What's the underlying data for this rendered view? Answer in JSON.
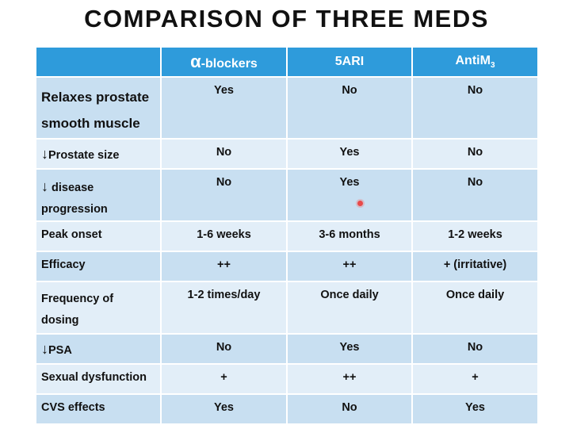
{
  "title": "COMPARISON OF THREE MEDS",
  "headers": {
    "alpha_symbol": "α",
    "alpha_suffix": "-blockers",
    "five_ari": "5ARI",
    "antim_base": "AntiM",
    "antim_sub": "3"
  },
  "rows": [
    {
      "label_line1": "Relaxes prostate",
      "label_line2": "smooth muscle",
      "alpha": "Yes",
      "five_ari": "No",
      "antim": "No"
    },
    {
      "arrow": "↓",
      "label": "Prostate size",
      "alpha": "No",
      "five_ari": "Yes",
      "antim": "No"
    },
    {
      "arrow": "↓",
      "label_line1": " disease",
      "label_line2": "progression",
      "alpha": "No",
      "five_ari": "Yes",
      "antim": "No"
    },
    {
      "label": "Peak onset",
      "alpha": "1-6 weeks",
      "five_ari": "3-6 months",
      "antim": "1-2 weeks"
    },
    {
      "label": "Efficacy",
      "alpha": "++",
      "five_ari": "++",
      "antim": "+ (irritative)"
    },
    {
      "label_line1": "Frequency of",
      "label_line2": "dosing",
      "alpha": "1-2 times/day",
      "five_ari": "Once daily",
      "antim": "Once daily"
    },
    {
      "arrow": "↓",
      "label": "PSA",
      "alpha": "No",
      "five_ari": "Yes",
      "antim": "No"
    },
    {
      "label": "Sexual dysfunction",
      "alpha": "+",
      "five_ari": "++",
      "antim": "+"
    },
    {
      "label": "CVS effects",
      "alpha": "Yes",
      "five_ari": "No",
      "antim": "Yes"
    }
  ],
  "colors": {
    "header_bg": "#2e9bdb",
    "row_dark": "#c8dff1",
    "row_light": "#e2eef8",
    "pointer_dot": "#e84a4a"
  }
}
